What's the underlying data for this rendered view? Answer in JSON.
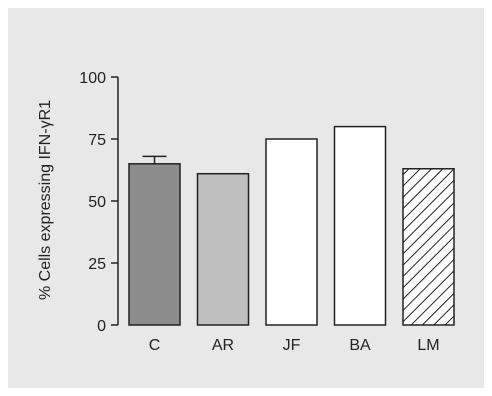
{
  "chart_data": {
    "type": "bar",
    "ylabel": "% Cells expressing IFN-γR1",
    "ylim": [
      0,
      100
    ],
    "yticks": [
      0,
      25,
      50,
      75,
      100
    ],
    "categories": [
      "C",
      "AR",
      "JF",
      "BA",
      "LM"
    ],
    "values": [
      65,
      61,
      75,
      80,
      63
    ],
    "error_bars": [
      3,
      null,
      null,
      null,
      null
    ],
    "bar_fills": [
      "#8c8c8c",
      "#bfbfbf",
      "#ffffff",
      "#ffffff",
      "hatched"
    ],
    "grid": false
  }
}
